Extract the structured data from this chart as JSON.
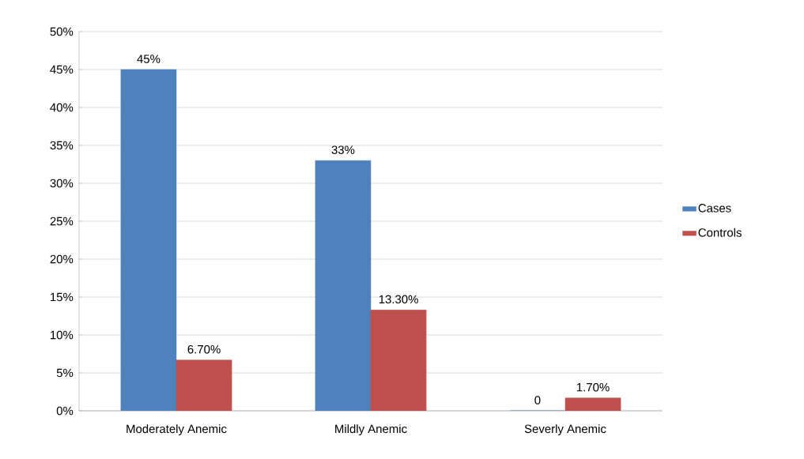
{
  "chart_data": {
    "type": "bar",
    "categories": [
      "Moderately Anemic",
      "Mildly Anemic",
      "Severly Anemic"
    ],
    "series": [
      {
        "name": "Cases",
        "color": "#4f81bd",
        "values": [
          45,
          33,
          0
        ],
        "value_labels": [
          "45%",
          "33%",
          "0"
        ]
      },
      {
        "name": "Controls",
        "color": "#c0504d",
        "values": [
          6.7,
          13.3,
          1.7
        ],
        "value_labels": [
          "6.70%",
          "13.30%",
          "1.70%"
        ]
      }
    ],
    "ylim": [
      0,
      50
    ],
    "yticks": [
      {
        "value": 0,
        "label": "0%"
      },
      {
        "value": 5,
        "label": "5%"
      },
      {
        "value": 10,
        "label": "10%"
      },
      {
        "value": 15,
        "label": "15%"
      },
      {
        "value": 20,
        "label": "20%"
      },
      {
        "value": 25,
        "label": "25%"
      },
      {
        "value": 30,
        "label": "30%"
      },
      {
        "value": 35,
        "label": "35%"
      },
      {
        "value": 40,
        "label": "40%"
      },
      {
        "value": 45,
        "label": "45%"
      },
      {
        "value": 50,
        "label": "50%"
      }
    ],
    "grid": "y",
    "legend": "right"
  }
}
